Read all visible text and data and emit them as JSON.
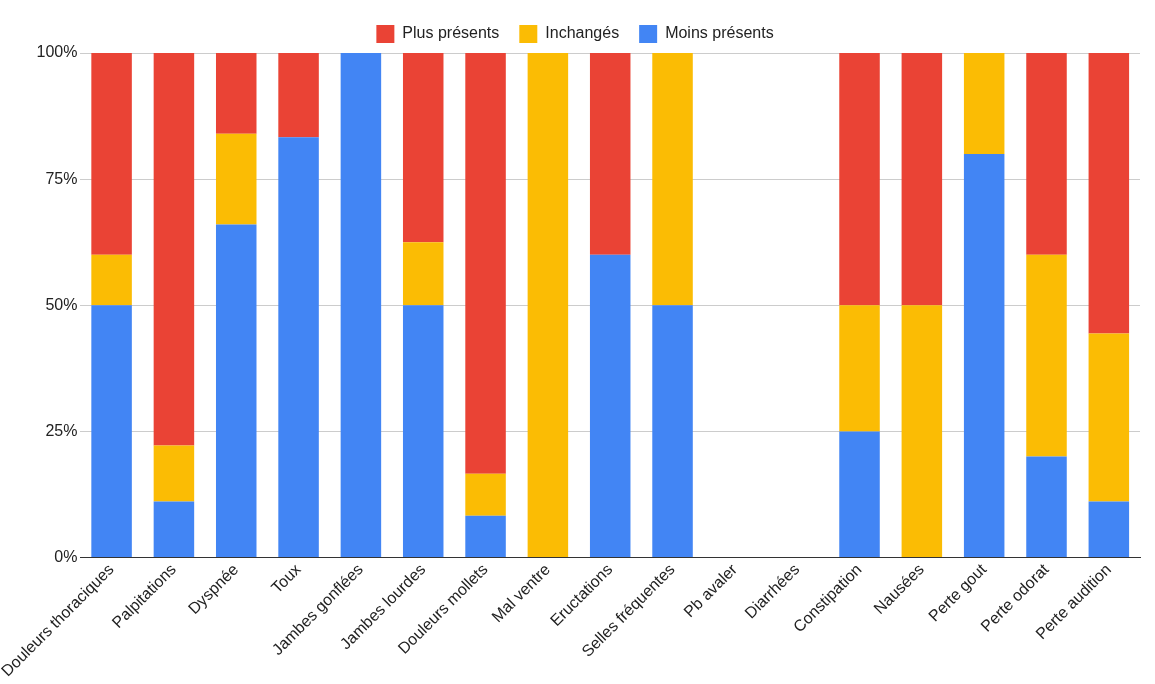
{
  "chart_data": {
    "type": "bar",
    "stacked": true,
    "legend": "top",
    "grid": "y",
    "categories": [
      "Douleurs thoraciques",
      "Palpitations",
      "Dyspnée",
      "Toux",
      "Jambes gonflées",
      "Jambes lourdes",
      "Douleurs mollets",
      "Mal ventre",
      "Eructations",
      "Selles fréquentes",
      "Pb avaler",
      "Diarrhées",
      "Constipation",
      "Nausées",
      "Perte gout",
      "Perte odorat",
      "Perte audition"
    ],
    "series": [
      {
        "name": "Moins présents",
        "color": "#4285f4",
        "values": [
          50,
          11.1,
          66,
          83.3,
          100,
          50,
          8.3,
          0,
          60,
          50,
          0,
          0,
          25,
          0,
          80,
          20,
          11.1
        ]
      },
      {
        "name": "Inchangés",
        "color": "#fbbc04",
        "values": [
          10,
          11.1,
          18,
          0,
          0,
          12.5,
          8.3,
          100,
          0,
          50,
          0,
          0,
          25,
          50,
          20,
          40,
          33.3
        ]
      },
      {
        "name": "Plus présents",
        "color": "#ea4335",
        "values": [
          40,
          77.8,
          16,
          16.7,
          0,
          37.5,
          83.4,
          0,
          40,
          0,
          0,
          0,
          50,
          50,
          0,
          40,
          55.6
        ]
      }
    ],
    "ylim": [
      0,
      100
    ],
    "yticks": [
      {
        "value": 0,
        "label": "0%"
      },
      {
        "value": 25,
        "label": "25%"
      },
      {
        "value": 50,
        "label": "50%"
      },
      {
        "value": 75,
        "label": "75%"
      },
      {
        "value": 100,
        "label": "100%"
      }
    ]
  }
}
